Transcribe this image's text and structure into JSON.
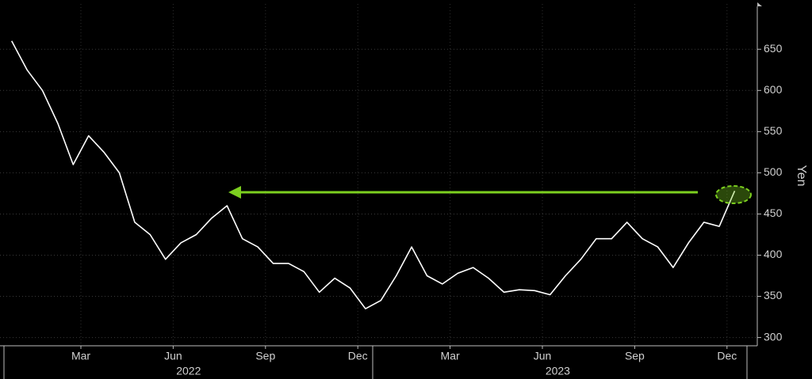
{
  "chart_data": {
    "type": "line",
    "y_axis_label": "Yen",
    "x": [
      "2022-01",
      "2022-01",
      "2022-02",
      "2022-02",
      "2022-03",
      "2022-03",
      "2022-04",
      "2022-04",
      "2022-05",
      "2022-05",
      "2022-06",
      "2022-06",
      "2022-07",
      "2022-07",
      "2022-08",
      "2022-08",
      "2022-09",
      "2022-09",
      "2022-10",
      "2022-10",
      "2022-11",
      "2022-11",
      "2022-12",
      "2022-12",
      "2023-01",
      "2023-01",
      "2023-02",
      "2023-02",
      "2023-03",
      "2023-03",
      "2023-04",
      "2023-04",
      "2023-05",
      "2023-05",
      "2023-06",
      "2023-06",
      "2023-07",
      "2023-07",
      "2023-08",
      "2023-08",
      "2023-09",
      "2023-09",
      "2023-10",
      "2023-10",
      "2023-11",
      "2023-11",
      "2023-12",
      "2023-12"
    ],
    "series": [
      {
        "color": "#ffffff",
        "values": [
          660,
          625,
          600,
          560,
          510,
          545,
          525,
          500,
          440,
          425,
          395,
          415,
          425,
          445,
          460,
          420,
          410,
          390,
          390,
          380,
          355,
          372,
          360,
          335,
          345,
          375,
          410,
          375,
          365,
          378,
          385,
          372,
          355,
          358,
          357,
          352,
          375,
          395,
          420,
          420,
          440,
          420,
          410,
          385,
          415,
          440,
          435,
          478
        ]
      }
    ],
    "xticks": [
      {
        "value": "2022-03",
        "label": "Mar"
      },
      {
        "value": "2022-06",
        "label": "Jun"
      },
      {
        "value": "2022-09",
        "label": "Sep"
      },
      {
        "value": "2022-12",
        "label": "Dec"
      },
      {
        "value": "2023-03",
        "label": "Mar"
      },
      {
        "value": "2023-06",
        "label": "Jun"
      },
      {
        "value": "2023-09",
        "label": "Sep"
      },
      {
        "value": "2023-12",
        "label": "Dec"
      }
    ],
    "years": [
      "2022",
      "2023"
    ],
    "ylim": [
      290,
      705
    ],
    "yticks": [
      300,
      350,
      400,
      450,
      500,
      550,
      600,
      650
    ],
    "grid": true
  }
}
